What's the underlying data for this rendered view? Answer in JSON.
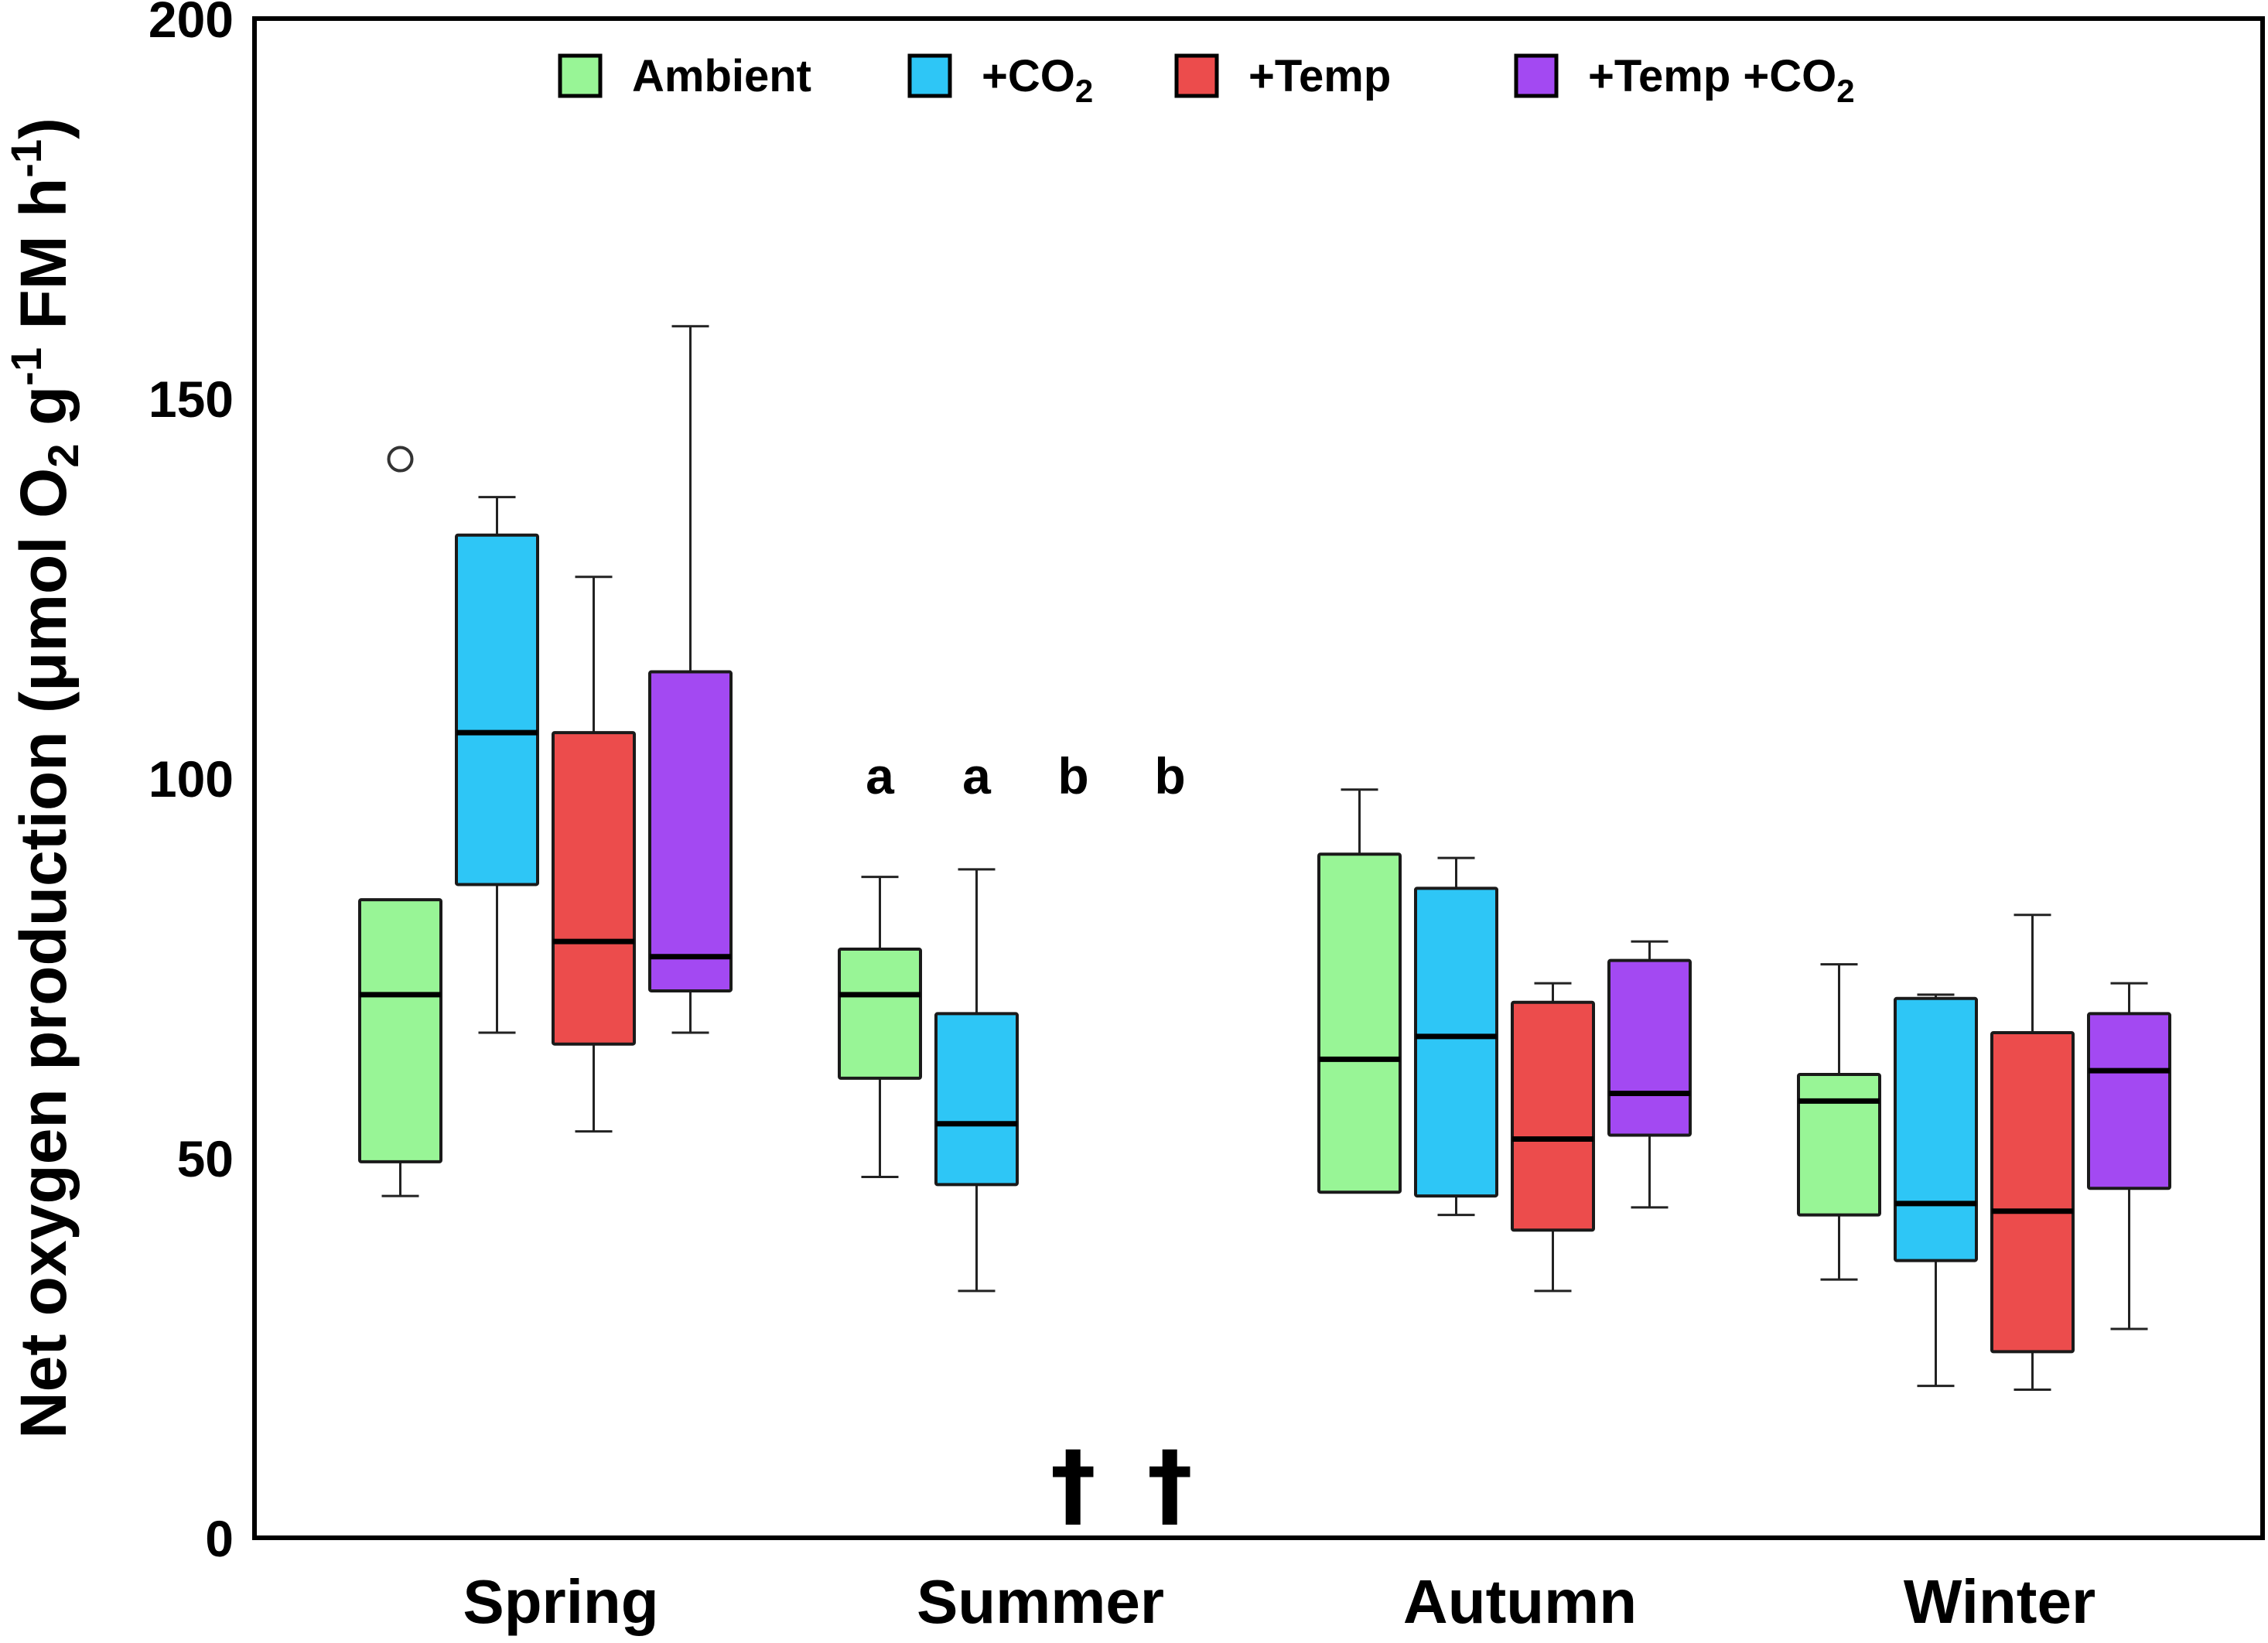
{
  "chart_data": {
    "type": "box",
    "title": "",
    "xlabel": "",
    "ylabel": {
      "main": "Net oxygen production (μmol O",
      "sub1": "2",
      "mid1": " g",
      "sup1": "-1",
      "mid2": " FM h",
      "sup2": "-1",
      "end": ")"
    },
    "ylim": [
      0,
      200
    ],
    "yticks": [
      0,
      50,
      100,
      150,
      200
    ],
    "categories": [
      "Spring",
      "Summer",
      "Autumn",
      "Winter"
    ],
    "legend": {
      "position": "top",
      "entries": [
        {
          "series": 0,
          "parts": [
            {
              "t": "Ambient"
            }
          ]
        },
        {
          "series": 1,
          "parts": [
            {
              "t": "+CO"
            },
            {
              "t": "2",
              "sub": true
            }
          ]
        },
        {
          "series": 2,
          "parts": [
            {
              "t": "+Temp"
            }
          ]
        },
        {
          "series": 3,
          "parts": [
            {
              "t": "+Temp +CO"
            },
            {
              "t": "2",
              "sub": true
            }
          ]
        }
      ]
    },
    "series": [
      {
        "name": "Ambient",
        "color": "#98f596",
        "boxes": [
          {
            "category": "Spring",
            "whisker_low": 45,
            "q1": 49.5,
            "median": 71.5,
            "q3": 84,
            "whisker_high": 84,
            "outliers": [
              142
            ]
          },
          {
            "category": "Summer",
            "whisker_low": 47.5,
            "q1": 60.5,
            "median": 71.5,
            "q3": 77.5,
            "whisker_high": 87,
            "outliers": []
          },
          {
            "category": "Autumn",
            "whisker_low": 45.5,
            "q1": 45.5,
            "median": 63,
            "q3": 90,
            "whisker_high": 98.5,
            "outliers": []
          },
          {
            "category": "Winter",
            "whisker_low": 34,
            "q1": 42.5,
            "median": 57.5,
            "q3": 61,
            "whisker_high": 75.5,
            "outliers": []
          }
        ]
      },
      {
        "name": "+CO2",
        "color": "#2ec6f6",
        "boxes": [
          {
            "category": "Spring",
            "whisker_low": 66.5,
            "q1": 86,
            "median": 106,
            "q3": 132,
            "whisker_high": 137,
            "outliers": []
          },
          {
            "category": "Summer",
            "whisker_low": 32.5,
            "q1": 46.5,
            "median": 54.5,
            "q3": 69,
            "whisker_high": 88,
            "outliers": []
          },
          {
            "category": "Autumn",
            "whisker_low": 42.5,
            "q1": 45,
            "median": 66,
            "q3": 85.5,
            "whisker_high": 89.5,
            "outliers": []
          },
          {
            "category": "Winter",
            "whisker_low": 20,
            "q1": 36.5,
            "median": 44,
            "q3": 71,
            "whisker_high": 71.5,
            "outliers": []
          }
        ]
      },
      {
        "name": "+Temp",
        "color": "#ec4c4c",
        "boxes": [
          {
            "category": "Spring",
            "whisker_low": 53.5,
            "q1": 65,
            "median": 78.5,
            "q3": 106,
            "whisker_high": 126.5,
            "outliers": []
          },
          {
            "category": "Summer",
            "whisker_low": 0,
            "q1": 0,
            "median": 0,
            "q3": 0,
            "whisker_high": 0,
            "outliers": []
          },
          {
            "category": "Autumn",
            "whisker_low": 32.5,
            "q1": 40.5,
            "median": 52.5,
            "q3": 70.5,
            "whisker_high": 73,
            "outliers": []
          },
          {
            "category": "Winter",
            "whisker_low": 19.5,
            "q1": 24.5,
            "median": 43,
            "q3": 66.5,
            "whisker_high": 82,
            "outliers": []
          }
        ]
      },
      {
        "name": "+Temp +CO2",
        "color": "#a349f2",
        "boxes": [
          {
            "category": "Spring",
            "whisker_low": 66.5,
            "q1": 72,
            "median": 76.5,
            "q3": 114,
            "whisker_high": 159.5,
            "outliers": []
          },
          {
            "category": "Summer",
            "whisker_low": 0,
            "q1": 0,
            "median": 0,
            "q3": 0,
            "whisker_high": 0,
            "outliers": []
          },
          {
            "category": "Autumn",
            "whisker_low": 43.5,
            "q1": 53,
            "median": 58.5,
            "q3": 76,
            "whisker_high": 78.5,
            "outliers": []
          },
          {
            "category": "Winter",
            "whisker_low": 27.5,
            "q1": 46,
            "median": 61.5,
            "q3": 69,
            "whisker_high": 73,
            "outliers": []
          }
        ]
      }
    ],
    "annotations": [
      {
        "category": "Summer",
        "series": 0,
        "text": "a",
        "value": 100
      },
      {
        "category": "Summer",
        "series": 1,
        "text": "a",
        "value": 100
      },
      {
        "category": "Summer",
        "series": 2,
        "text": "b",
        "value": 100
      },
      {
        "category": "Summer",
        "series": 3,
        "text": "b",
        "value": 100
      },
      {
        "category": "Summer",
        "series": 2,
        "text": "†",
        "value": 7
      },
      {
        "category": "Summer",
        "series": 3,
        "text": "†",
        "value": 7
      }
    ]
  }
}
